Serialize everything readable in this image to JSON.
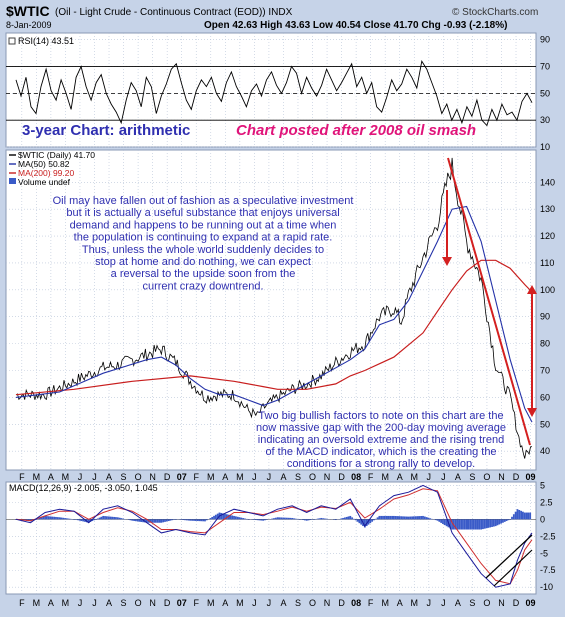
{
  "header": {
    "symbol": "$WTIC",
    "description": "(Oil - Light Crude - Continuous Contract (EOD)) INDX",
    "date": "8-Jan-2009",
    "brand": "© StockCharts.com",
    "quote": "Open 42.63 High 43.63 Low 40.54 Close 41.70 Chg -0.93 (-2.18%)"
  },
  "colors": {
    "panel_bg": "#ffffff",
    "outer_bg": "#c6d3e8",
    "grid": "#b8c4d8",
    "price_line": "#000000",
    "ma50": "#2432a8",
    "ma200": "#c81e1e",
    "annotation_blue": "#2f2fb0",
    "annotation_magenta": "#e0147a",
    "arrow_red": "#d42020",
    "macd_line": "#1a1a9a",
    "signal_line": "#d03030",
    "hist_fill": "#3a5bc8"
  },
  "annotations": {
    "chart_type": "3-year Chart: arithmetic",
    "posted": "Chart posted after 2008 oil smash",
    "note1": [
      "Oil may have fallen out of fashion as a speculative investment",
      "but it is actually a useful substance that enjoys universal",
      "demand and happens to be running out at a time when",
      "the population is continuing to expand at a rapid rate.",
      "Thus, unless the whole world suddenly decides to",
      "stop at home and do nothing, we can expect",
      "a reversal to the upside soon from the",
      "current crazy downtrend."
    ],
    "note2": [
      "Two big bullish factors to note on this chart are the",
      "now  massive gap with the 200-day moving average",
      "indicating an oversold extreme and the rising trend",
      "of the MACD indicator, which is the creating the",
      "conditions for a strong rally to develop."
    ]
  },
  "chart_data": [
    {
      "type": "line",
      "panel": "rsi",
      "label": "RSI(14) 43.51",
      "ylim": [
        10,
        95
      ],
      "yticks": [
        10,
        30,
        50,
        70,
        90
      ],
      "overbought": 70,
      "oversold": 30,
      "series": [
        {
          "name": "RSI(14)",
          "values": [
            60,
            48,
            62,
            40,
            35,
            55,
            68,
            52,
            45,
            60,
            50,
            38,
            62,
            70,
            55,
            45,
            58,
            64,
            50,
            42,
            36,
            28,
            45,
            58,
            52,
            40,
            62,
            55,
            35,
            48,
            57,
            68,
            72,
            58,
            45,
            38,
            52,
            60,
            55,
            62,
            50,
            44,
            58,
            66,
            55,
            48,
            40,
            52,
            57,
            48,
            60,
            66,
            56,
            50,
            58,
            70,
            65,
            50,
            62,
            54,
            48,
            56,
            68,
            60,
            52,
            58,
            65,
            72,
            55,
            62,
            50,
            58,
            40,
            36,
            47,
            60,
            52,
            57,
            68,
            62,
            54,
            74,
            68,
            58,
            48,
            35,
            42,
            30,
            38,
            28,
            40,
            33,
            45,
            30,
            26,
            38,
            30,
            42,
            34,
            36,
            30,
            44,
            50,
            43
          ]
        }
      ]
    },
    {
      "type": "line",
      "panel": "price",
      "legend": [
        "$WTIC (Daily) 41.70",
        "MA(50) 50.82",
        "MA(200) 99.20",
        "Volume undef"
      ],
      "ylim": [
        33,
        152
      ],
      "yticks": [
        40,
        50,
        60,
        70,
        80,
        90,
        100,
        110,
        120,
        130,
        140
      ],
      "month_labels": [
        "F",
        "M",
        "A",
        "M",
        "J",
        "J",
        "A",
        "S",
        "O",
        "N",
        "D",
        "07",
        "F",
        "M",
        "A",
        "M",
        "J",
        "J",
        "A",
        "S",
        "O",
        "N",
        "D",
        "08",
        "F",
        "M",
        "A",
        "M",
        "J",
        "J",
        "A",
        "S",
        "O",
        "N",
        "D",
        "09"
      ],
      "series": [
        {
          "name": "$WTIC (Daily)",
          "x": [
            0,
            2,
            4,
            6,
            7,
            9,
            10,
            11,
            12,
            13,
            14,
            15,
            16,
            16.6,
            17,
            18,
            19,
            20,
            21,
            22,
            23,
            24,
            25,
            26,
            26.5,
            27,
            28,
            29,
            29.6,
            30,
            31,
            32,
            33,
            34,
            34.6,
            35,
            35.5
          ],
          "values": [
            61,
            61,
            66,
            71,
            72,
            76,
            78,
            73,
            66,
            60,
            61,
            61,
            55,
            53,
            56,
            60,
            63,
            65,
            68,
            73,
            77,
            80,
            90,
            93,
            88,
            98,
            112,
            125,
            139,
            146,
            118,
            104,
            72,
            60,
            45,
            38,
            41.7
          ]
        },
        {
          "name": "MA(50)",
          "x": [
            0,
            3,
            6,
            9,
            10,
            11,
            12,
            13,
            14,
            15,
            16,
            17,
            18,
            19,
            20,
            21,
            22,
            23,
            24,
            25,
            26,
            27,
            28,
            29,
            30,
            31,
            32,
            33,
            34,
            35,
            35.5
          ],
          "values": [
            60,
            62,
            69,
            74,
            75,
            72,
            67,
            63,
            61,
            61,
            59,
            57,
            59,
            62,
            65,
            68,
            71,
            74,
            78,
            87,
            89,
            96,
            107,
            118,
            130,
            131,
            118,
            96,
            74,
            56,
            50.8
          ]
        },
        {
          "name": "MA(200)",
          "x": [
            0,
            4,
            8,
            12,
            15,
            17,
            18,
            20,
            22,
            23,
            24,
            26,
            28,
            29,
            30,
            31,
            32,
            33,
            34,
            35,
            35.5
          ],
          "values": [
            61,
            63,
            66,
            68,
            66,
            64,
            63,
            63,
            65,
            68,
            70,
            75,
            84,
            92,
            100,
            107,
            111,
            111,
            108,
            102,
            99.2
          ]
        }
      ]
    },
    {
      "type": "line",
      "panel": "macd",
      "label": "MACD(12,26,9) -2.005, -3.050, 1.045",
      "ylim": [
        -11,
        5.5
      ],
      "yticks": [
        -10,
        -7.5,
        -5,
        -2.5,
        0,
        2.5,
        5
      ],
      "x": [
        0,
        1,
        2,
        3,
        4,
        5,
        6,
        7,
        8,
        9,
        10,
        11,
        12,
        13,
        14,
        15,
        16,
        17,
        18,
        19,
        20,
        21,
        22,
        23,
        24,
        25,
        26,
        27,
        28,
        29,
        30,
        31,
        32,
        33,
        34,
        34.5,
        35,
        35.5
      ],
      "series": [
        {
          "name": "MACD",
          "values": [
            0,
            -0.5,
            1,
            1.5,
            1.2,
            -0.5,
            1.5,
            2,
            1,
            -0.5,
            -2,
            -1.5,
            -2,
            -2.3,
            0.5,
            1.5,
            1,
            0.5,
            1.5,
            2,
            1,
            2,
            1.5,
            3,
            -1,
            2,
            3.5,
            4,
            5,
            4,
            -2,
            -5,
            -8,
            -10,
            -9.5,
            -6,
            -3.5,
            -2
          ]
        },
        {
          "name": "Signal",
          "values": [
            0,
            -0.2,
            0.5,
            1.2,
            1.2,
            0,
            1,
            1.7,
            1.2,
            0,
            -1.5,
            -1.5,
            -1.8,
            -2,
            -0.5,
            1,
            1,
            0.7,
            1.2,
            1.8,
            1.2,
            1.8,
            1.6,
            2.5,
            0.2,
            1.5,
            3,
            3.6,
            4.5,
            4.2,
            -0.5,
            -3.5,
            -6.5,
            -9,
            -9.5,
            -7.5,
            -4.5,
            -3
          ]
        }
      ]
    }
  ]
}
